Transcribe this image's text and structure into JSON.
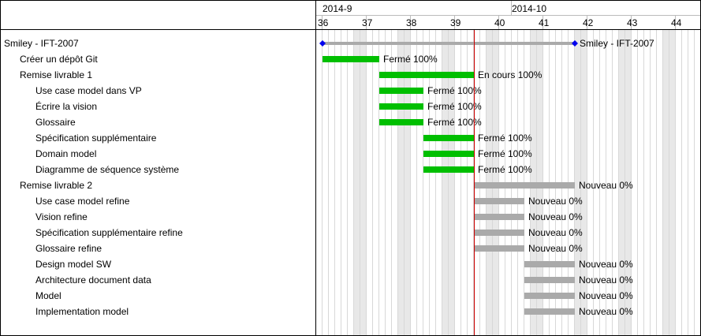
{
  "header": {
    "months": [
      {
        "label": "2014-9",
        "start_day": 0
      },
      {
        "label": "2014-10",
        "start_day": 30
      }
    ],
    "weeks": [
      "36",
      "37",
      "38",
      "39",
      "40",
      "41",
      "42",
      "43",
      "44"
    ]
  },
  "today_day": 24,
  "colors": {
    "done": "#00bf00",
    "new": "#aaaaaa",
    "summary": "#aaaaaa",
    "milestone": "#0000ee",
    "today_line": "#cc0000",
    "weekend": "#e8e8e8",
    "grid": "#d8d8d8"
  },
  "rows": [
    {
      "subject": "Smiley - IFT-2007",
      "level": 0,
      "start_day": 0,
      "end_day": 40,
      "status": "Smiley - IFT-2007",
      "kind": "project"
    },
    {
      "subject": "Créer un dépôt Git",
      "level": 1,
      "start_day": 0,
      "end_day": 9,
      "status": "Fermé 100%",
      "kind": "done"
    },
    {
      "subject": "Remise livrable 1",
      "level": 1,
      "start_day": 9,
      "end_day": 24,
      "status": "En cours 100%",
      "kind": "done"
    },
    {
      "subject": "Use case model dans VP",
      "level": 2,
      "start_day": 9,
      "end_day": 16,
      "status": "Fermé 100%",
      "kind": "done"
    },
    {
      "subject": "Écrire la vision",
      "level": 2,
      "start_day": 9,
      "end_day": 16,
      "status": "Fermé 100%",
      "kind": "done"
    },
    {
      "subject": "Glossaire",
      "level": 2,
      "start_day": 9,
      "end_day": 16,
      "status": "Fermé 100%",
      "kind": "done"
    },
    {
      "subject": "Spécification supplémentaire",
      "level": 2,
      "start_day": 16,
      "end_day": 24,
      "status": "Fermé 100%",
      "kind": "done"
    },
    {
      "subject": "Domain model",
      "level": 2,
      "start_day": 16,
      "end_day": 24,
      "status": "Fermé 100%",
      "kind": "done"
    },
    {
      "subject": "Diagramme de séquence système",
      "level": 2,
      "start_day": 16,
      "end_day": 24,
      "status": "Fermé 100%",
      "kind": "done"
    },
    {
      "subject": "Remise livrable 2",
      "level": 1,
      "start_day": 24,
      "end_day": 40,
      "status": "Nouveau 0%",
      "kind": "new"
    },
    {
      "subject": "Use case model refine",
      "level": 2,
      "start_day": 24,
      "end_day": 32,
      "status": "Nouveau 0%",
      "kind": "new"
    },
    {
      "subject": "Vision refine",
      "level": 2,
      "start_day": 24,
      "end_day": 32,
      "status": "Nouveau 0%",
      "kind": "new"
    },
    {
      "subject": "Spécification supplémentaire refine",
      "level": 2,
      "start_day": 24,
      "end_day": 32,
      "status": "Nouveau 0%",
      "kind": "new"
    },
    {
      "subject": "Glossaire refine",
      "level": 2,
      "start_day": 24,
      "end_day": 32,
      "status": "Nouveau 0%",
      "kind": "new"
    },
    {
      "subject": "Design model SW",
      "level": 2,
      "start_day": 32,
      "end_day": 40,
      "status": "Nouveau 0%",
      "kind": "new"
    },
    {
      "subject": "Architecture document data",
      "level": 2,
      "start_day": 32,
      "end_day": 40,
      "status": "Nouveau 0%",
      "kind": "new"
    },
    {
      "subject": "Model",
      "level": 2,
      "start_day": 32,
      "end_day": 40,
      "status": "Nouveau 0%",
      "kind": "new"
    },
    {
      "subject": "Implementation model",
      "level": 2,
      "start_day": 32,
      "end_day": 40,
      "status": "Nouveau 0%",
      "kind": "new"
    }
  ]
}
